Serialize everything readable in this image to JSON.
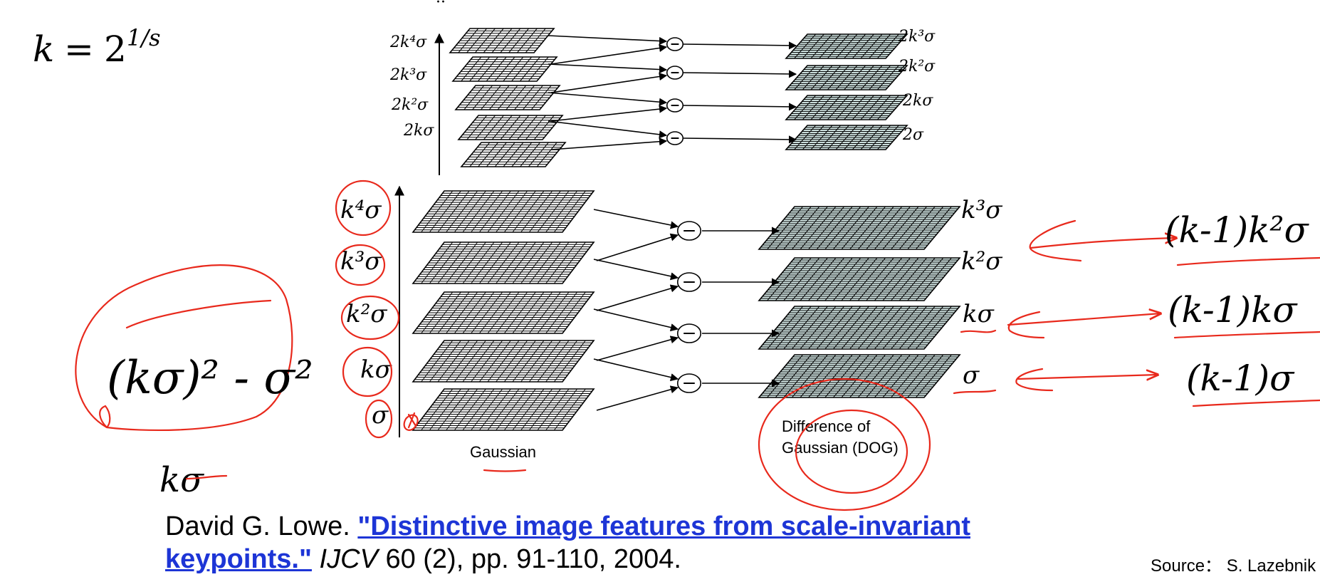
{
  "formula": {
    "lhs": "k",
    "eq": "=",
    "base": "2",
    "exp": "1/s"
  },
  "top_octave": {
    "gaussian_labels": [
      "2k⁴σ",
      "2k³σ",
      "2k²σ",
      "2kσ"
    ],
    "dog_labels": [
      "2k³σ",
      "2k²σ",
      "2kσ",
      "2σ"
    ]
  },
  "bottom_octave": {
    "gaussian_labels": [
      "k⁴σ",
      "k³σ",
      "k²σ",
      "kσ",
      "σ"
    ],
    "dog_labels": [
      "k³σ",
      "k²σ",
      "kσ",
      "σ"
    ],
    "gaussian_caption": "Gaussian",
    "dog_caption_line1": "Difference of",
    "dog_caption_line2": "Gaussian (DOG)"
  },
  "minus_symbol": "−",
  "handwritten": {
    "left_formula": "(kσ)² - σ²",
    "left_below": "kσ",
    "right_notes": [
      "(k-1)k²σ",
      "(k-1)kσ",
      "(k-1)σ"
    ]
  },
  "colors": {
    "annotation": "#e8291c",
    "link": "#1d35d6",
    "grid_fill": "#d8ecea"
  },
  "citation": {
    "author": "David G. Lowe. ",
    "title": "\"Distinctive image features from scale-invariant keypoints.\"",
    "journal": "IJCV",
    "rest": " 60 (2), pp. 91-110, 2004."
  },
  "source": "Source： S. Lazebnik"
}
